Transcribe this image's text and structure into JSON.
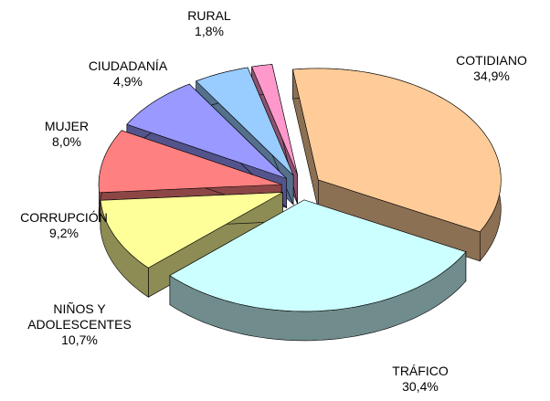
{
  "chart_data": {
    "type": "pie",
    "categories": [
      "COTIDIANO",
      "TRÁFICO",
      "NIÑOS Y ADOLESCENTES",
      "CORRUPCIÓN",
      "MUJER",
      "CIUDADANÍA",
      "RURAL"
    ],
    "values": [
      34.9,
      30.4,
      10.7,
      9.2,
      8.0,
      4.9,
      1.8
    ],
    "value_labels": [
      "34,9%",
      "30,4%",
      "10,7%",
      "9,2%",
      "8,0%",
      "4,9%",
      "1,8%"
    ],
    "colors": [
      "#ffcc99",
      "#ccffff",
      "#ffff99",
      "#ff8080",
      "#9999ff",
      "#99ccff",
      "#ff99cc"
    ]
  }
}
